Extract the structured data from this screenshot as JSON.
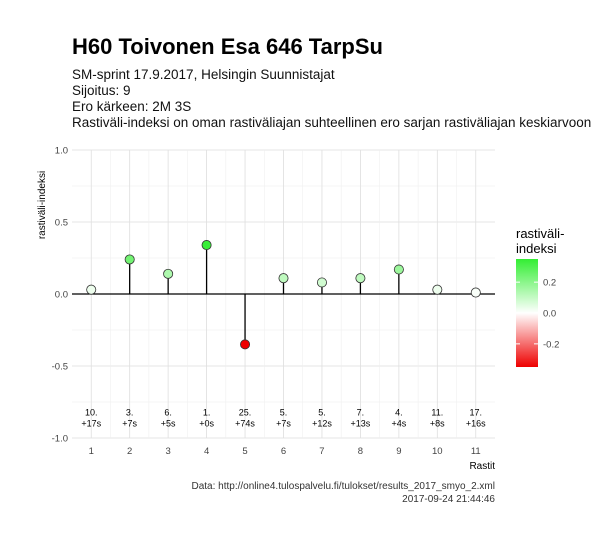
{
  "title": "H60 Toivonen Esa 646 TarpSu",
  "subtitle_lines": [
    "SM-sprint 17.9.2017, Helsingin Suunnistajat",
    "Sijoitus: 9",
    "Ero kärkeen: 2M 3S",
    "Rastiväli-indeksi on oman rastiväliajan suhteellinen ero sarjan rastiväliajan keskiarvoon"
  ],
  "footer": {
    "source": "Data: http://online4.tulospalvelu.fi/tulokset/results_2017_smyo_2.xml",
    "timestamp": "2017-09-24 21:44:46"
  },
  "chart_data": {
    "type": "scatter",
    "style": "lollipop",
    "xlabel": "Rastit",
    "ylabel": "rastiväli-indeksi",
    "xlim": [
      0.5,
      11.5
    ],
    "ylim": [
      -1.0,
      1.0
    ],
    "y_ticks": [
      -1.0,
      -0.5,
      0.0,
      0.5,
      1.0
    ],
    "y_tick_labels": [
      "-1.0",
      "-0.5",
      "0.0",
      "0.5",
      "1.0"
    ],
    "x": [
      1,
      2,
      3,
      4,
      5,
      6,
      7,
      8,
      9,
      10,
      11
    ],
    "values": [
      0.03,
      0.24,
      0.14,
      0.34,
      -0.35,
      0.11,
      0.08,
      0.11,
      0.17,
      0.03,
      0.01
    ],
    "split_labels": [
      [
        "10.",
        "+17s"
      ],
      [
        "3.",
        "+7s"
      ],
      [
        "6.",
        "+5s"
      ],
      [
        "1.",
        "+0s"
      ],
      [
        "25.",
        "+74s"
      ],
      [
        "5.",
        "+7s"
      ],
      [
        "5.",
        "+12s"
      ],
      [
        "7.",
        "+13s"
      ],
      [
        "4.",
        "+4s"
      ],
      [
        "11.",
        "+8s"
      ],
      [
        "17.",
        "+16s"
      ]
    ],
    "grid": true,
    "legend": {
      "title_lines": [
        "rastiväli-",
        "indeksi"
      ],
      "placement": "right",
      "ticks": [
        0.2,
        0.0,
        -0.2
      ],
      "tick_labels": [
        "0.2",
        "0.0",
        "-0.2"
      ],
      "range": [
        -0.35,
        0.35
      ],
      "colors": {
        "low": "#ee0000",
        "mid": "#ffffff",
        "high": "#33ee33"
      }
    }
  }
}
